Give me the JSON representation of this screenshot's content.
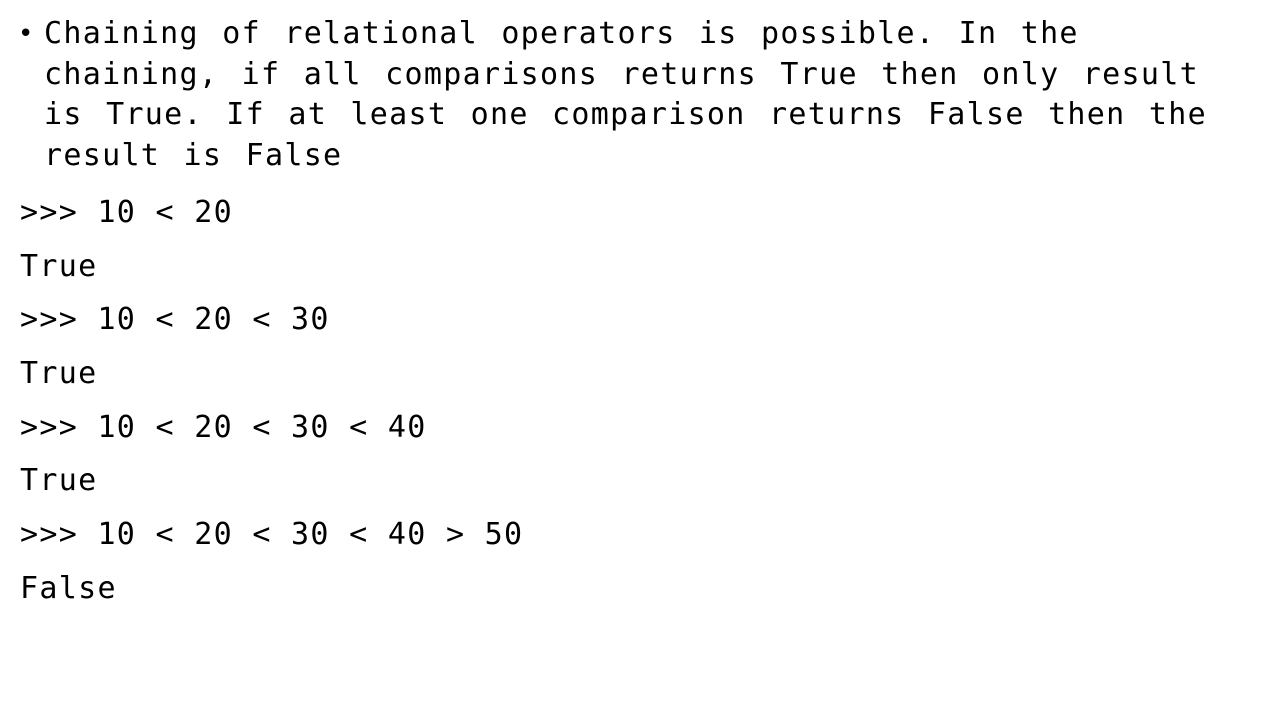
{
  "slide": {
    "bullet": {
      "glyph": "•",
      "text": "Chaining of relational operators is possible. In the chaining, if all comparisons returns True then only result is True. If at least one comparison returns False then the result is False"
    },
    "lines": [
      ">>> 10 < 20",
      "True",
      ">>> 10 < 20 < 30",
      "True",
      ">>> 10 < 20 < 30 < 40",
      "True",
      ">>> 10 < 20 < 30 < 40 > 50",
      "False"
    ]
  }
}
